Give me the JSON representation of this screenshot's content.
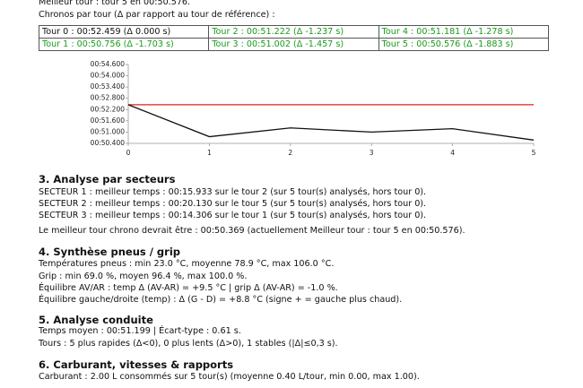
{
  "header": {
    "best_lap": "Meilleur tour : tour 5 en 00:50.576.",
    "laps_intro": "Chronos par tour (Δ par rapport au tour de référence) :"
  },
  "table": {
    "rows": [
      [
        "Tour 0 : 00:52.459 (Δ 0.000 s)",
        "Tour 2 : 00:51.222 (Δ -1.237 s)",
        "Tour 4 : 00:51.181 (Δ -1.278 s)"
      ],
      [
        "Tour 1 : 00:50.756 (Δ -1.703 s)",
        "Tour 3 : 00:51.002 (Δ -1.457 s)",
        "Tour 5 : 00:50.576 (Δ -1.883 s)"
      ]
    ]
  },
  "chart_data": {
    "type": "line",
    "x": [
      0,
      1,
      2,
      3,
      4,
      5
    ],
    "series": [
      {
        "color": "#e0201e",
        "values": [
          52.459,
          52.459,
          52.459,
          52.459,
          52.459,
          52.459
        ]
      },
      {
        "color": "#111111",
        "values": [
          52.459,
          50.756,
          51.222,
          51.002,
          51.181,
          50.576
        ]
      }
    ],
    "xlim": [
      0,
      5
    ],
    "xticks": [
      0,
      1,
      2,
      3,
      4,
      5
    ],
    "ylim": [
      50.4,
      54.6
    ],
    "yticks": [
      {
        "value": 54.6,
        "label": "00:54.600"
      },
      {
        "value": 54.0,
        "label": "00:54.000"
      },
      {
        "value": 53.4,
        "label": "00:53.400"
      },
      {
        "value": 52.8,
        "label": "00:52.800"
      },
      {
        "value": 52.2,
        "label": "00:52.200"
      },
      {
        "value": 51.6,
        "label": "00:51.600"
      },
      {
        "value": 51.0,
        "label": "00:51.000"
      },
      {
        "value": 50.4,
        "label": "00:50.400"
      }
    ]
  },
  "sections": [
    {
      "title": "3. Analyse par secteurs",
      "lines": [
        "SECTEUR 1 : meilleur temps : 00:15.933 sur le tour 2 (sur 5 tour(s) analysés, hors tour 0).",
        "SECTEUR 2 : meilleur temps : 00:20.130 sur le tour 5 (sur 5 tour(s) analysés, hors tour 0).",
        "SECTEUR 3 : meilleur temps : 00:14.306 sur le tour 1 (sur 5 tour(s) analysés, hors tour 0).",
        "Le meilleur tour chrono devrait être : 00:50.369 (actuellement Meilleur tour : tour 5 en 00:50.576)."
      ]
    },
    {
      "title": "4. Synthèse pneus / grip",
      "lines": [
        "Températures pneus : min 23.0 °C, moyenne 78.9 °C, max 106.0 °C.",
        "Grip : min 69.0 %, moyen 96.4 %, max 100.0 %.",
        "Équilibre AV/AR : temp Δ (AV-AR) = +9.5 °C | grip Δ (AV-AR) = -1.0 %.",
        "Équilibre gauche/droite (temp) : Δ (G - D) = +8.8 °C (signe + = gauche plus chaud)."
      ]
    },
    {
      "title": "5. Analyse conduite",
      "lines": [
        "Temps moyen : 00:51.199 | Écart-type : 0.61 s.",
        "Tours : 5 plus rapides (Δ<0), 0 plus lents (Δ>0), 1 stables (|Δ|≤0,3 s)."
      ]
    },
    {
      "title": "6. Carburant, vitesses & rapports",
      "lines": [
        "Carburant : 2.00 L consommés sur 5 tour(s) (moyenne 0.40 L/tour, min 0.00, max 1.00)."
      ]
    }
  ]
}
